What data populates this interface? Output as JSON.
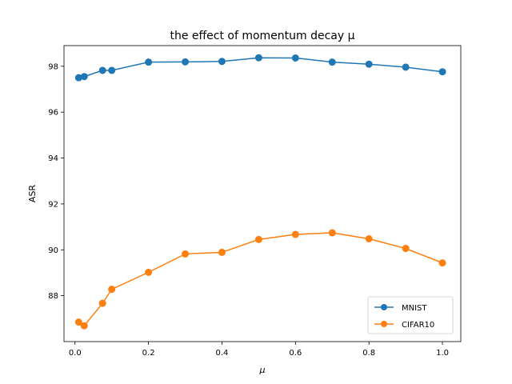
{
  "chart_data": {
    "type": "line",
    "title": "the effect of momentum decay μ",
    "xlabel": "μ",
    "ylabel": "ASR",
    "xlim": [
      -0.03,
      1.05
    ],
    "ylim": [
      86.0,
      98.9
    ],
    "xticks": [
      0.0,
      0.2,
      0.4,
      0.6,
      0.8,
      1.0
    ],
    "xtick_labels": [
      "0.0",
      "0.2",
      "0.4",
      "0.6",
      "0.8",
      "1.0"
    ],
    "yticks": [
      88,
      90,
      92,
      94,
      96,
      98
    ],
    "ytick_labels": [
      "88",
      "90",
      "92",
      "94",
      "96",
      "98"
    ],
    "grid": false,
    "legend_position": "bottom-right",
    "x": [
      0.01,
      0.025,
      0.075,
      0.1,
      0.2,
      0.3,
      0.4,
      0.5,
      0.6,
      0.7,
      0.8,
      0.9,
      1.0
    ],
    "series": [
      {
        "name": "MNIST",
        "color": "#1f77b4",
        "values": [
          97.5,
          97.55,
          97.82,
          97.82,
          98.18,
          98.19,
          98.21,
          98.37,
          98.36,
          98.18,
          98.09,
          97.96,
          97.76
        ]
      },
      {
        "name": "CIFAR10",
        "color": "#ff7f0e",
        "values": [
          86.85,
          86.69,
          87.67,
          88.28,
          89.02,
          89.82,
          89.89,
          90.45,
          90.67,
          90.74,
          90.48,
          90.06,
          89.43
        ]
      }
    ]
  }
}
